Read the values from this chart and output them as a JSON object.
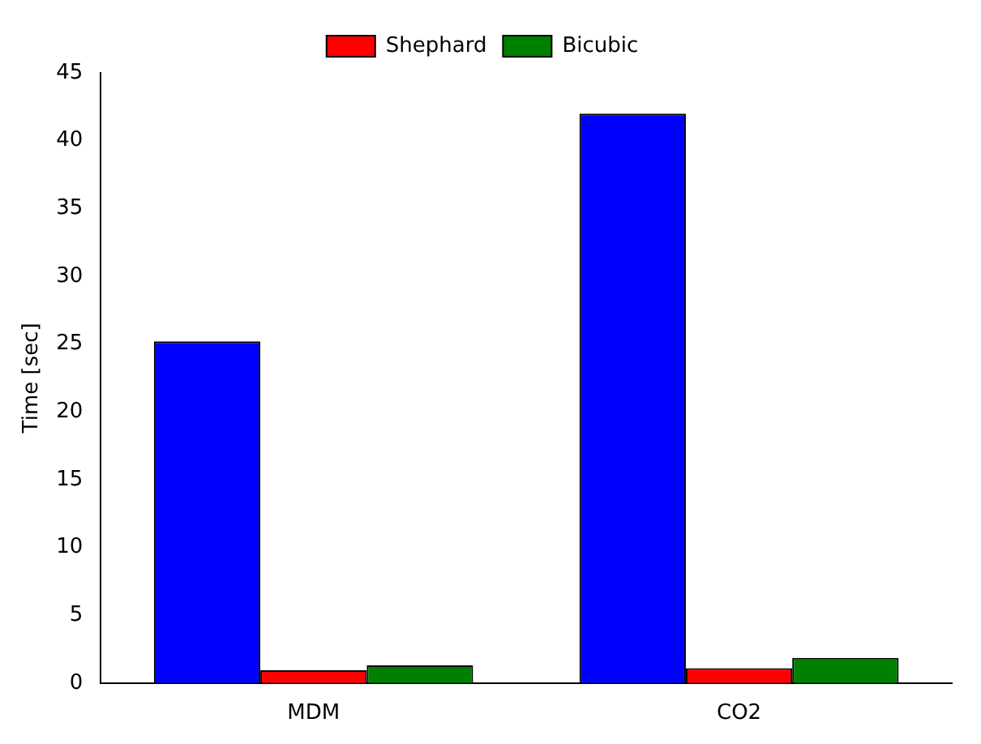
{
  "chart_data": {
    "type": "bar",
    "ylabel": "Time [sec]",
    "categories": [
      "MDM",
      "CO2"
    ],
    "series": [
      {
        "color": "#0000ff",
        "values": [
          25.2,
          42
        ]
      },
      {
        "name": "Shephard",
        "color": "#ff0000",
        "values": [
          0.95,
          1.1
        ]
      },
      {
        "name": "Bicubic",
        "color": "#008000",
        "values": [
          1.3,
          1.85
        ]
      }
    ],
    "ylim": [
      0,
      45
    ],
    "yticks": [
      0,
      5,
      10,
      15,
      20,
      25,
      30,
      35,
      40,
      45
    ],
    "grid": false,
    "legend": "top"
  }
}
